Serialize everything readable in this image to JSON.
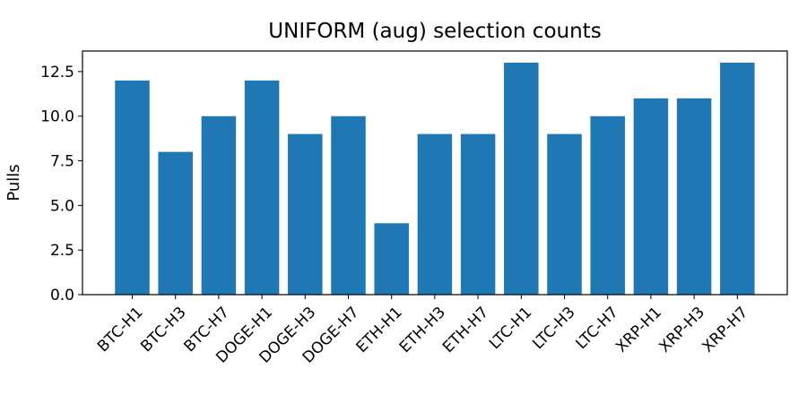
{
  "chart_data": {
    "type": "bar",
    "title": "UNIFORM (aug) selection counts",
    "xlabel": "",
    "ylabel": "Pulls",
    "categories": [
      "BTC-H1",
      "BTC-H3",
      "BTC-H7",
      "DOGE-H1",
      "DOGE-H3",
      "DOGE-H7",
      "ETH-H1",
      "ETH-H3",
      "ETH-H7",
      "LTC-H1",
      "LTC-H3",
      "LTC-H7",
      "XRP-H1",
      "XRP-H3",
      "XRP-H7"
    ],
    "values": [
      12,
      8,
      10,
      12,
      9,
      10,
      4,
      9,
      9,
      13,
      9,
      10,
      11,
      11,
      13
    ],
    "ylim": [
      0,
      13.65
    ],
    "yticks": [
      "0.0",
      "2.5",
      "5.0",
      "7.5",
      "10.0",
      "12.5"
    ],
    "grid": false,
    "bar_color": "#1f77b4"
  }
}
